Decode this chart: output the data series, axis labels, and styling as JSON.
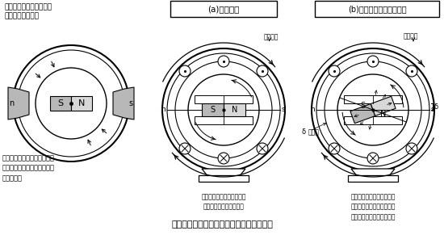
{
  "title": "同期モータの基本原理（永久磁石形の例）",
  "panel1_title": "永久磁石のみによる同期\nモータの基本概念",
  "panel1_caption": "外側の磁石を回転させると、\n内側の磁石も吸引力によって\n回転する。",
  "panel2_title": "(a)無負荷時",
  "panel2_caption": "同期速度で回転中の回転子\nに回転磁界を与えている",
  "panel2_label": "回転磁界",
  "panel3_title": "(b)負荷を担っているとき",
  "panel3_caption": "回転子は同期速度で回転し\nているが、回転磁界の方向\nに対して角度がついている",
  "panel3_label": "回転磁界",
  "delta_label": "δ",
  "load_angle_label": "δ\n負荷角",
  "bg_color": "#ffffff",
  "line_color": "#000000",
  "gray_color": "#b8b8b8",
  "light_gray": "#d8d8d8"
}
